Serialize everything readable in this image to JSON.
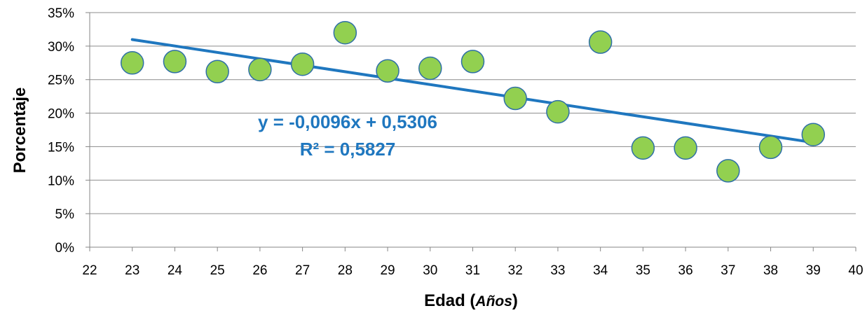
{
  "chart_data": {
    "type": "scatter",
    "title": "",
    "xlabel": "Edad (",
    "xlabel_italic": "Años",
    "xlabel_suffix": ")",
    "ylabel": "Porcentaje",
    "xlim": [
      22,
      40
    ],
    "ylim": [
      0,
      0.35
    ],
    "x_ticks": [
      22,
      23,
      24,
      25,
      26,
      27,
      28,
      29,
      30,
      31,
      32,
      33,
      34,
      35,
      36,
      37,
      38,
      39,
      40
    ],
    "y_ticks": [
      {
        "value": 0,
        "label": "0%"
      },
      {
        "value": 0.05,
        "label": "5%"
      },
      {
        "value": 0.1,
        "label": "10%"
      },
      {
        "value": 0.15,
        "label": "15%"
      },
      {
        "value": 0.2,
        "label": "20%"
      },
      {
        "value": 0.25,
        "label": "25%"
      },
      {
        "value": 0.3,
        "label": "30%"
      },
      {
        "value": 0.35,
        "label": "35%"
      }
    ],
    "grid": true,
    "points": [
      {
        "x": 23,
        "y": 0.275
      },
      {
        "x": 24,
        "y": 0.277
      },
      {
        "x": 25,
        "y": 0.262
      },
      {
        "x": 26,
        "y": 0.265
      },
      {
        "x": 27,
        "y": 0.273
      },
      {
        "x": 28,
        "y": 0.32
      },
      {
        "x": 29,
        "y": 0.263
      },
      {
        "x": 30,
        "y": 0.267
      },
      {
        "x": 31,
        "y": 0.277
      },
      {
        "x": 32,
        "y": 0.222
      },
      {
        "x": 33,
        "y": 0.202
      },
      {
        "x": 34,
        "y": 0.306
      },
      {
        "x": 35,
        "y": 0.148
      },
      {
        "x": 36,
        "y": 0.148
      },
      {
        "x": 37,
        "y": 0.114
      },
      {
        "x": 38,
        "y": 0.149
      },
      {
        "x": 39,
        "y": 0.168
      }
    ],
    "trendline": {
      "slope": -0.0096,
      "intercept": 0.5306,
      "x_range": [
        23,
        39
      ],
      "equation": "y = -0,0096x + 0,5306",
      "r_squared": "R² = 0,5827"
    },
    "colors": {
      "point_fill": "#92d050",
      "point_stroke": "#2e6fa7",
      "trendline": "#1f77bf",
      "equation": "#1f77bf",
      "grid": "#8c8c8c",
      "axis": "#868686"
    }
  }
}
